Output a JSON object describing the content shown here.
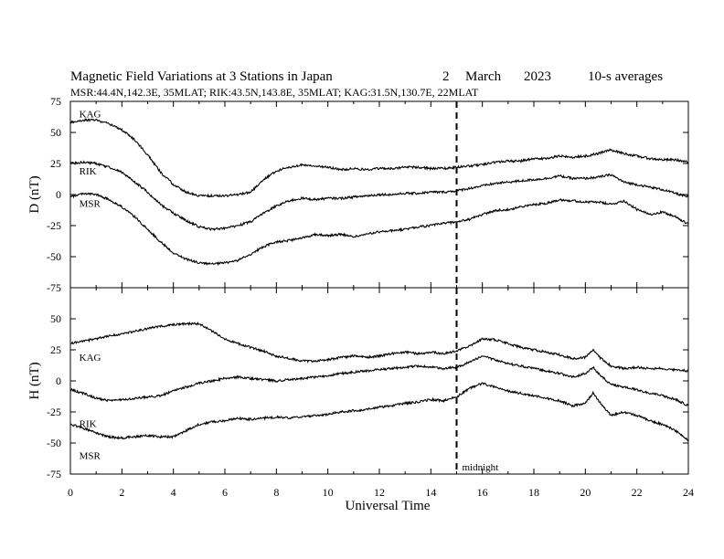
{
  "header": {
    "title": "Magnetic Field Variations at 3 Stations in Japan",
    "day": "2",
    "month": "March",
    "year": "2023",
    "averages": "10-s averages",
    "stations_line": "MSR:44.4N,142.3E, 35MLAT;  RIK:43.5N,143.8E, 35MLAT;  KAG:31.5N,130.7E, 22MLAT"
  },
  "annotation": {
    "midnight_label": "midnight",
    "midnight_ut": 15
  },
  "chart_data": [
    {
      "type": "line",
      "panel": "D",
      "ylabel": "D (nT)",
      "xlabel": "",
      "ylim": [
        -75,
        75
      ],
      "yticks": [
        "75",
        "50",
        "25",
        "0",
        "-25",
        "-50",
        "-75"
      ],
      "xlim": [
        0,
        24
      ],
      "series": [
        {
          "name": "KAG",
          "label_x": 0.2,
          "label_y": 62,
          "x": [
            0,
            0.5,
            1,
            1.5,
            2,
            2.5,
            3,
            3.5,
            4,
            4.5,
            5,
            5.5,
            6,
            6.5,
            7,
            7.5,
            8,
            8.5,
            9,
            9.5,
            10,
            10.5,
            11,
            11.5,
            12,
            12.5,
            13,
            13.5,
            14,
            14.5,
            15,
            15.5,
            16,
            16.5,
            17,
            17.5,
            18,
            18.5,
            19,
            19.5,
            20,
            20.5,
            21,
            21.5,
            22,
            22.5,
            23,
            23.5,
            24
          ],
          "y": [
            58,
            60,
            60,
            57,
            52,
            44,
            32,
            18,
            8,
            2,
            -1,
            -1,
            -1,
            0,
            2,
            12,
            19,
            22,
            24,
            23,
            22,
            20,
            21,
            20,
            21,
            21,
            22,
            22,
            21,
            21,
            22,
            23,
            24,
            26,
            27,
            27,
            29,
            29,
            31,
            30,
            31,
            33,
            36,
            33,
            31,
            29,
            28,
            28,
            26
          ]
        },
        {
          "name": "RIK",
          "label_x": 0.2,
          "label_y": 16,
          "x": [
            0,
            0.5,
            1,
            1.5,
            2,
            2.5,
            3,
            3.5,
            4,
            4.5,
            5,
            5.5,
            6,
            6.5,
            7,
            7.5,
            8,
            8.5,
            9,
            9.5,
            10,
            10.5,
            11,
            11.5,
            12,
            12.5,
            13,
            13.5,
            14,
            14.5,
            15,
            15.5,
            16,
            16.5,
            17,
            17.5,
            18,
            18.5,
            19,
            19.5,
            20,
            20.5,
            21,
            21.5,
            22,
            22.5,
            23,
            23.5,
            24
          ],
          "y": [
            25,
            26,
            25,
            22,
            18,
            10,
            2,
            -8,
            -15,
            -21,
            -26,
            -28,
            -27,
            -25,
            -22,
            -15,
            -9,
            -5,
            -3,
            -4,
            -3,
            -3,
            -2,
            -1,
            0,
            0,
            1,
            1,
            2,
            2,
            3,
            5,
            7,
            9,
            10,
            11,
            12,
            13,
            15,
            13,
            13,
            14,
            16,
            10,
            8,
            6,
            4,
            1,
            -2
          ]
        },
        {
          "name": "MSR",
          "label_x": 0.2,
          "label_y": -10,
          "x": [
            0,
            0.5,
            1,
            1.5,
            2,
            2.5,
            3,
            3.5,
            4,
            4.5,
            5,
            5.5,
            6,
            6.5,
            7,
            7.5,
            8,
            8.5,
            9,
            9.5,
            10,
            10.5,
            11,
            11.5,
            12,
            12.5,
            13,
            13.5,
            14,
            14.5,
            15,
            15.5,
            16,
            16.5,
            17,
            17.5,
            18,
            18.5,
            19,
            19.5,
            20,
            20.5,
            21,
            21.5,
            22,
            22.5,
            23,
            23.5,
            24
          ],
          "y": [
            -2,
            1,
            0,
            -4,
            -10,
            -18,
            -28,
            -38,
            -47,
            -52,
            -55,
            -56,
            -55,
            -53,
            -48,
            -42,
            -38,
            -37,
            -35,
            -32,
            -33,
            -32,
            -34,
            -32,
            -30,
            -29,
            -28,
            -26,
            -25,
            -23,
            -22,
            -20,
            -16,
            -13,
            -12,
            -10,
            -8,
            -7,
            -4,
            -5,
            -6,
            -6,
            -8,
            -5,
            -12,
            -16,
            -14,
            -18,
            -24
          ]
        }
      ]
    },
    {
      "type": "line",
      "panel": "H",
      "ylabel": "H (nT)",
      "xlabel": "Universal Time",
      "ylim": [
        -75,
        75
      ],
      "yticks": [
        "",
        "50",
        "25",
        "0",
        "-25",
        "-50",
        "-75"
      ],
      "xlim": [
        0,
        24
      ],
      "xticks": [
        "0",
        "2",
        "4",
        "6",
        "8",
        "10",
        "12",
        "14",
        "16",
        "18",
        "20",
        "22",
        "24"
      ],
      "series": [
        {
          "name": "KAG",
          "label_x": 0.2,
          "label_y": 16,
          "x": [
            0,
            0.5,
            1,
            1.5,
            2,
            2.5,
            3,
            3.5,
            4,
            4.5,
            5,
            5.5,
            6,
            6.5,
            7,
            7.5,
            8,
            8.5,
            9,
            9.5,
            10,
            10.5,
            11,
            11.5,
            12,
            12.5,
            13,
            13.5,
            14,
            14.5,
            15,
            15.5,
            16,
            16.5,
            17,
            17.5,
            18,
            18.5,
            19,
            19.5,
            20,
            20.3,
            20.6,
            21,
            21.5,
            22,
            22.5,
            23,
            23.5,
            24
          ],
          "y": [
            30,
            32,
            34,
            36,
            38,
            40,
            42,
            44,
            45,
            46,
            46,
            40,
            34,
            30,
            27,
            24,
            20,
            18,
            16,
            16,
            17,
            19,
            20,
            19,
            20,
            22,
            23,
            22,
            23,
            22,
            24,
            28,
            34,
            33,
            30,
            27,
            25,
            23,
            21,
            18,
            19,
            25,
            18,
            12,
            10,
            11,
            10,
            10,
            9,
            8
          ]
        },
        {
          "name": "RIK",
          "label_x": 0.2,
          "label_y": -37,
          "x": [
            0,
            0.5,
            1,
            1.5,
            2,
            2.5,
            3,
            3.5,
            4,
            4.5,
            5,
            5.5,
            6,
            6.5,
            7,
            7.5,
            8,
            8.5,
            9,
            9.5,
            10,
            10.5,
            11,
            11.5,
            12,
            12.5,
            13,
            13.5,
            14,
            14.5,
            15,
            15.5,
            16,
            16.5,
            17,
            17.5,
            18,
            18.5,
            19,
            19.5,
            20,
            20.3,
            20.6,
            21,
            21.5,
            22,
            22.5,
            23,
            23.5,
            24
          ],
          "y": [
            -7,
            -10,
            -14,
            -16,
            -15,
            -14,
            -13,
            -12,
            -8,
            -5,
            -2,
            0,
            2,
            3,
            2,
            1,
            0,
            1,
            2,
            3,
            4,
            6,
            7,
            8,
            9,
            10,
            11,
            12,
            11,
            10,
            11,
            15,
            20,
            17,
            14,
            12,
            10,
            8,
            6,
            3,
            6,
            11,
            4,
            -3,
            -5,
            -7,
            -10,
            -12,
            -15,
            -20
          ]
        },
        {
          "name": "MSR",
          "label_x": 0.2,
          "label_y": -63,
          "x": [
            0,
            0.5,
            1,
            1.5,
            2,
            2.5,
            3,
            3.5,
            4,
            4.5,
            5,
            5.5,
            6,
            6.5,
            7,
            7.5,
            8,
            8.5,
            9,
            9.5,
            10,
            10.5,
            11,
            11.5,
            12,
            12.5,
            13,
            13.5,
            14,
            14.5,
            15,
            15.5,
            16,
            16.5,
            17,
            17.5,
            18,
            18.5,
            19,
            19.5,
            20,
            20.3,
            20.6,
            21,
            21.5,
            22,
            22.5,
            23,
            23.5,
            24
          ],
          "y": [
            -35,
            -38,
            -42,
            -45,
            -46,
            -45,
            -44,
            -45,
            -45,
            -40,
            -35,
            -33,
            -32,
            -30,
            -31,
            -30,
            -29,
            -30,
            -29,
            -28,
            -27,
            -25,
            -24,
            -23,
            -21,
            -20,
            -18,
            -17,
            -15,
            -16,
            -13,
            -6,
            -2,
            -5,
            -8,
            -10,
            -12,
            -14,
            -16,
            -20,
            -18,
            -10,
            -18,
            -28,
            -25,
            -28,
            -32,
            -35,
            -40,
            -48
          ]
        }
      ]
    }
  ]
}
